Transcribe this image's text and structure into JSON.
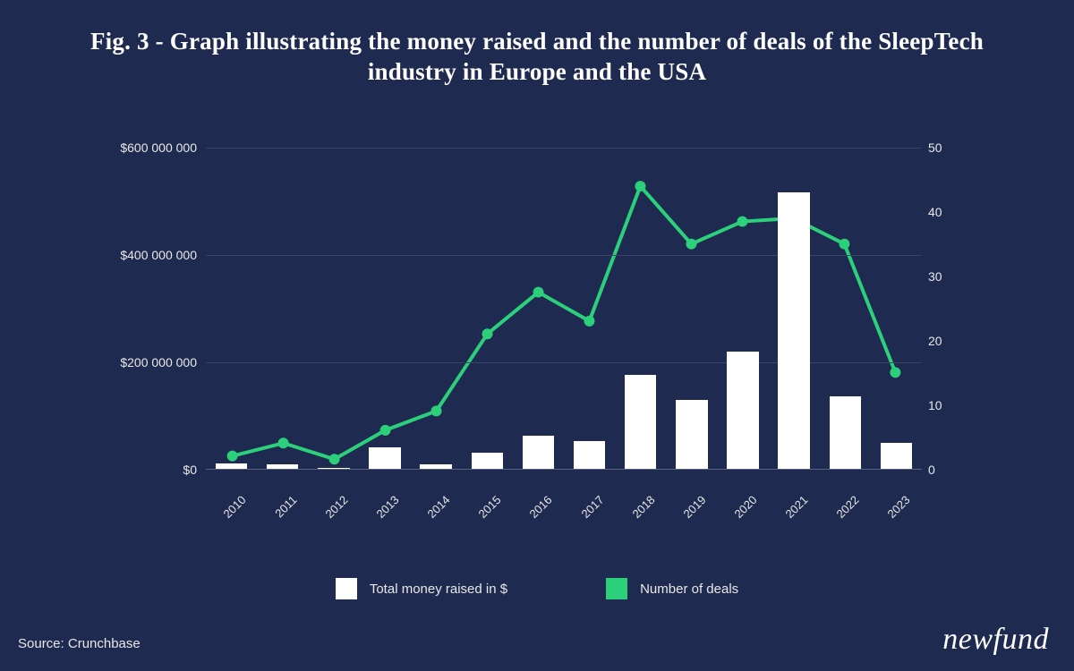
{
  "title": "Fig. 3 - Graph illustrating the money raised and the number of deals of the SleepTech industry in Europe and the USA",
  "source_label": "Source: Crunchbase",
  "brand": "newfund",
  "chart": {
    "type": "bar+line",
    "background_color": "#1e2a4f",
    "grid_color": "#3a4468",
    "axis_color": "#5a6280",
    "text_color": "#e8e8e8",
    "title_fontsize": 27,
    "tick_fontsize": 14,
    "x_categories": [
      "2010",
      "2011",
      "2012",
      "2013",
      "2014",
      "2015",
      "2016",
      "2017",
      "2018",
      "2019",
      "2020",
      "2021",
      "2022",
      "2023"
    ],
    "x_label_rotation_deg": -45,
    "bars": {
      "label": "Total money raised in $",
      "color": "#ffffff",
      "bar_width_ratio": 0.62,
      "ylim": [
        0,
        600000000
      ],
      "yticks": [
        0,
        200000000,
        400000000,
        600000000
      ],
      "ytick_labels": [
        "$0",
        "$200 000 000",
        "$400 000 000",
        "$600 000 000"
      ],
      "values": [
        10000000,
        8000000,
        2000000,
        40000000,
        8000000,
        30000000,
        62000000,
        52000000,
        175000000,
        128000000,
        218000000,
        515000000,
        135000000,
        48000000
      ]
    },
    "line": {
      "label": "Number of deals",
      "color": "#2dd07a",
      "line_width": 4,
      "marker_radius": 6,
      "ylim": [
        0,
        50
      ],
      "yticks": [
        0,
        10,
        20,
        30,
        40,
        50
      ],
      "ytick_labels": [
        "0",
        "10",
        "20",
        "30",
        "40",
        "50"
      ],
      "values": [
        2,
        4,
        1.5,
        6,
        9,
        21,
        27.5,
        23,
        44,
        35,
        38.5,
        39,
        35,
        15
      ]
    },
    "legend": {
      "items": [
        {
          "swatch": "#ffffff",
          "label": "Total money raised in $"
        },
        {
          "swatch": "#2dd07a",
          "label": "Number of deals"
        }
      ]
    }
  }
}
